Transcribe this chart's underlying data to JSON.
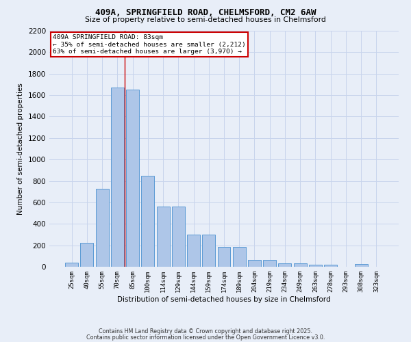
{
  "title1": "409A, SPRINGFIELD ROAD, CHELMSFORD, CM2 6AW",
  "title2": "Size of property relative to semi-detached houses in Chelmsford",
  "xlabel": "Distribution of semi-detached houses by size in Chelmsford",
  "ylabel": "Number of semi-detached properties",
  "bins": [
    "25sqm",
    "40sqm",
    "55sqm",
    "70sqm",
    "85sqm",
    "100sqm",
    "114sqm",
    "129sqm",
    "144sqm",
    "159sqm",
    "174sqm",
    "189sqm",
    "204sqm",
    "219sqm",
    "234sqm",
    "249sqm",
    "263sqm",
    "278sqm",
    "293sqm",
    "308sqm",
    "323sqm"
  ],
  "values": [
    40,
    225,
    725,
    1670,
    1650,
    850,
    560,
    560,
    300,
    300,
    185,
    185,
    65,
    65,
    30,
    30,
    20,
    20,
    0,
    25,
    0
  ],
  "bar_color": "#aec6e8",
  "bar_edge_color": "#5b9bd5",
  "vline_x": 3.5,
  "annotation_title": "409A SPRINGFIELD ROAD: 83sqm",
  "annotation_line1": "← 35% of semi-detached houses are smaller (2,212)",
  "annotation_line2": "63% of semi-detached houses are larger (3,970) →",
  "annotation_box_color": "#ffffff",
  "annotation_box_edge": "#cc0000",
  "vline_color": "#cc0000",
  "ylim": [
    0,
    2200
  ],
  "yticks": [
    0,
    200,
    400,
    600,
    800,
    1000,
    1200,
    1400,
    1600,
    1800,
    2000,
    2200
  ],
  "background_color": "#e8eef8",
  "grid_color": "#c8d4ec",
  "footer1": "Contains HM Land Registry data © Crown copyright and database right 2025.",
  "footer2": "Contains public sector information licensed under the Open Government Licence v3.0."
}
